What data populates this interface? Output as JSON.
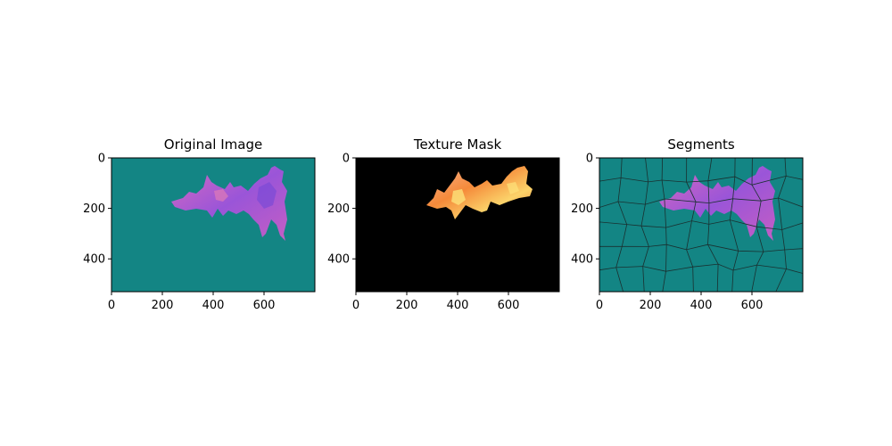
{
  "chart_data": [
    {
      "type": "image",
      "title": "Original Image",
      "background": "#138584",
      "xlim": [
        0,
        800
      ],
      "ylim": [
        530,
        0
      ],
      "xticks": [
        0,
        200,
        400,
        600
      ],
      "yticks": [
        0,
        200,
        400
      ]
    },
    {
      "type": "image",
      "title": "Texture Mask",
      "background": "#000000",
      "xlim": [
        0,
        800
      ],
      "ylim": [
        530,
        0
      ],
      "xticks": [
        0,
        200,
        400,
        600
      ],
      "yticks": [
        0,
        200,
        400
      ]
    },
    {
      "type": "image",
      "title": "Segments",
      "background": "#138584",
      "xlim": [
        0,
        800
      ],
      "ylim": [
        530,
        0
      ],
      "xticks": [
        0,
        200,
        400,
        600
      ],
      "yticks": [
        0,
        200,
        400
      ]
    }
  ],
  "colors": {
    "teal": "#138584",
    "purple": "#8e4fd6",
    "magenta": "#c862c8",
    "pink": "#e07ab6",
    "orange": "#f3893a",
    "peach": "#f5a77a",
    "yellow": "#fde27a",
    "boundary": "#1a3030"
  }
}
